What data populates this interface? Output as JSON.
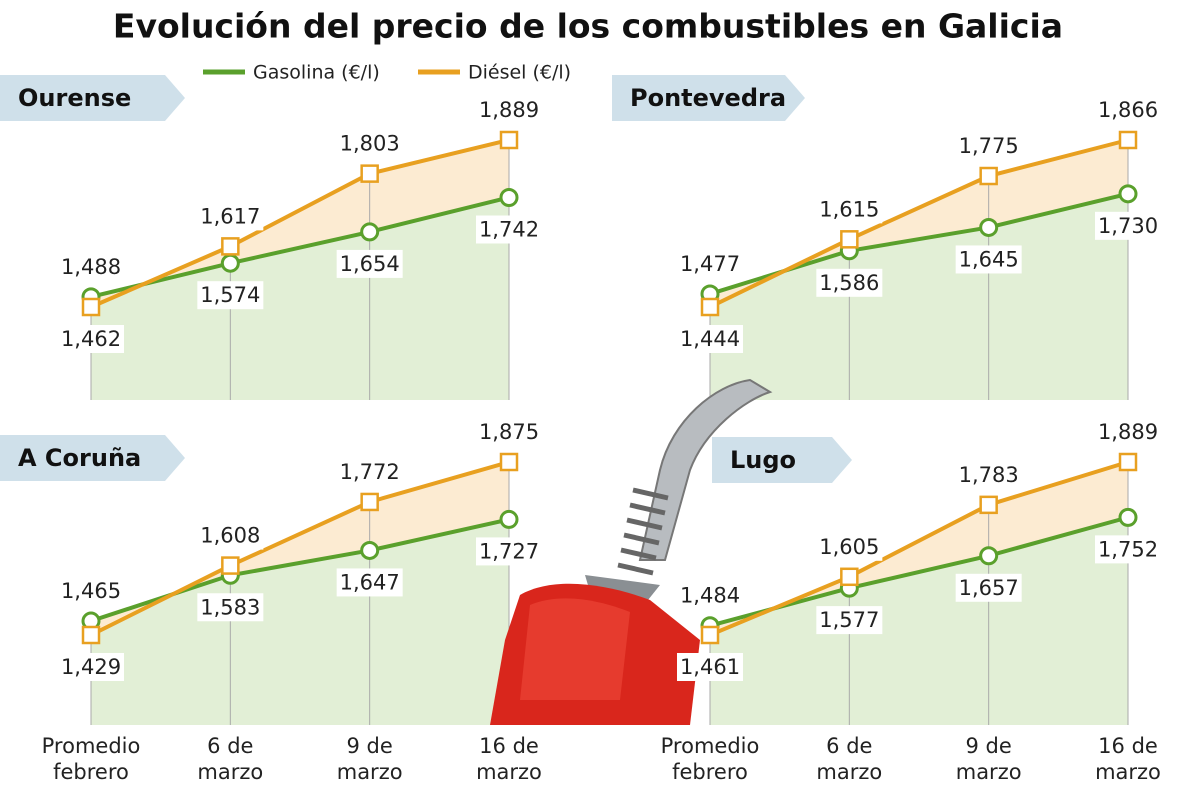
{
  "title": "Evolución del precio de los combustibles en Galicia",
  "chart_data": [
    {
      "type": "line",
      "title": "Ourense",
      "series": [
        {
          "name": "Gasolina (€/l)",
          "color": "#5aa02c",
          "values": [
            1.488,
            1.574,
            1.654,
            1.742
          ],
          "value_labels": [
            "1,488",
            "1,574",
            "1,654",
            "1,742"
          ]
        },
        {
          "name": "Diésel (€/l)",
          "color": "#e8a020",
          "values": [
            1.462,
            1.617,
            1.803,
            1.889
          ],
          "value_labels": [
            "1,462",
            "1,617",
            "1,803",
            "1,889"
          ]
        }
      ]
    },
    {
      "type": "line",
      "title": "Pontevedra",
      "series": [
        {
          "name": "Gasolina (€/l)",
          "color": "#5aa02c",
          "values": [
            1.477,
            1.586,
            1.645,
            1.73
          ],
          "value_labels": [
            "1,477",
            "1,586",
            "1,645",
            "1,730"
          ]
        },
        {
          "name": "Diésel (€/l)",
          "color": "#e8a020",
          "values": [
            1.444,
            1.615,
            1.775,
            1.866
          ],
          "value_labels": [
            "1,444",
            "1,615",
            "1,775",
            "1,866"
          ]
        }
      ]
    },
    {
      "type": "line",
      "title": "A Coruña",
      "categories": [
        "Promedio\nfebrero",
        "6 de\nmarzo",
        "9 de\nmarzo",
        "16 de\nmarzo"
      ],
      "series": [
        {
          "name": "Gasolina (€/l)",
          "color": "#5aa02c",
          "values": [
            1.465,
            1.583,
            1.647,
            1.727
          ],
          "value_labels": [
            "1,465",
            "1,583",
            "1,647",
            "1,727"
          ]
        },
        {
          "name": "Diésel (€/l)",
          "color": "#e8a020",
          "values": [
            1.429,
            1.608,
            1.772,
            1.875
          ],
          "value_labels": [
            "1,429",
            "1,608",
            "1,772",
            "1,875"
          ]
        }
      ]
    },
    {
      "type": "line",
      "title": "Lugo",
      "categories": [
        "Promedio\nfebrero",
        "6 de\nmarzo",
        "9 de\nmarzo",
        "16 de\nmarzo"
      ],
      "series": [
        {
          "name": "Gasolina (€/l)",
          "color": "#5aa02c",
          "values": [
            1.484,
            1.577,
            1.657,
            1.752
          ],
          "value_labels": [
            "1,484",
            "1,577",
            "1,657",
            "1,752"
          ]
        },
        {
          "name": "Diésel (€/l)",
          "color": "#e8a020",
          "values": [
            1.461,
            1.605,
            1.783,
            1.889
          ],
          "value_labels": [
            "1,461",
            "1,605",
            "1,783",
            "1,889"
          ]
        }
      ]
    }
  ]
}
